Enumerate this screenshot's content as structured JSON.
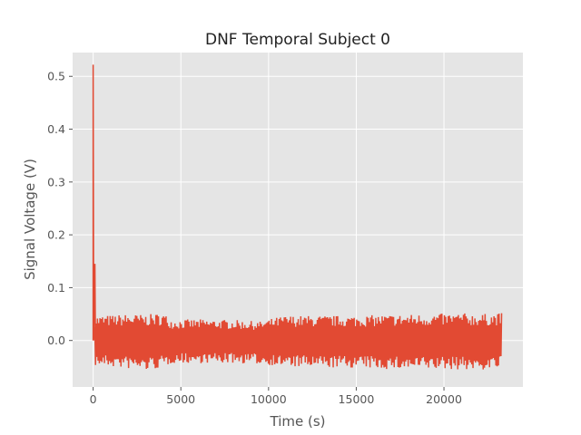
{
  "chart_data": {
    "type": "line",
    "title": "DNF Temporal Subject 0",
    "xlabel": "Time (s)",
    "ylabel": "Signal Voltage (V)",
    "xlim": [
      -1170,
      24500
    ],
    "ylim": [
      -0.088,
      0.545
    ],
    "xticks": [
      0,
      5000,
      10000,
      15000,
      20000
    ],
    "xtick_labels": [
      "0",
      "5000",
      "10000",
      "15000",
      "20000"
    ],
    "yticks": [
      0.0,
      0.1,
      0.2,
      0.3,
      0.4,
      0.5
    ],
    "ytick_labels": [
      "0.0",
      "0.1",
      "0.2",
      "0.3",
      "0.4",
      "0.5"
    ],
    "grid": true,
    "series": [
      {
        "color": "#e24a33",
        "spikes": [
          {
            "x": 0,
            "y": 0.522
          },
          {
            "x": 100,
            "y": 0.145
          }
        ],
        "envelope": {
          "x": [
            100,
            1000,
            2000,
            3000,
            4000,
            4500,
            6000,
            8000,
            9500,
            10500,
            11000,
            13000,
            15000,
            17000,
            19000,
            21000,
            22000,
            23300
          ],
          "upper": [
            0.047,
            0.048,
            0.05,
            0.049,
            0.052,
            0.04,
            0.04,
            0.039,
            0.036,
            0.044,
            0.047,
            0.047,
            0.047,
            0.049,
            0.05,
            0.052,
            0.05,
            0.052
          ],
          "lower": [
            -0.048,
            -0.05,
            -0.054,
            -0.057,
            -0.052,
            -0.043,
            -0.043,
            -0.043,
            -0.045,
            -0.048,
            -0.05,
            -0.052,
            -0.052,
            -0.055,
            -0.055,
            -0.055,
            -0.057,
            -0.052
          ]
        }
      }
    ]
  }
}
